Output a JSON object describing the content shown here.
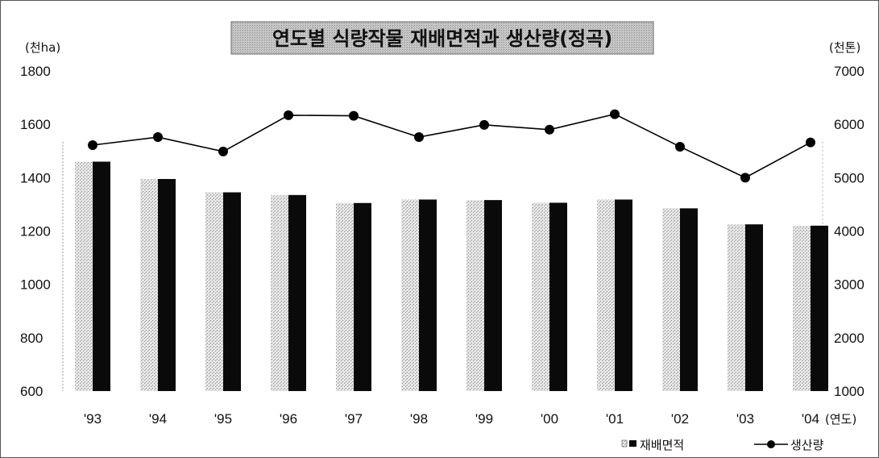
{
  "chart_data": {
    "type": "bar+line",
    "title": "연도별 식량작물 재배면적과 생산량(정곡)",
    "categories": [
      "'93",
      "'94",
      "'95",
      "'96",
      "'97",
      "'98",
      "'99",
      "'00",
      "'01",
      "'02",
      "'03",
      "'04"
    ],
    "x_unit": "(연도)",
    "y_left": {
      "unit": "(천ha)",
      "ylim": [
        600,
        1800
      ],
      "ticks": [
        600,
        800,
        1000,
        1200,
        1400,
        1600,
        1800
      ]
    },
    "y_right": {
      "unit": "(천톤)",
      "ylim": [
        1000,
        7000
      ],
      "ticks": [
        1000,
        2000,
        3000,
        4000,
        5000,
        6000,
        7000
      ]
    },
    "series": [
      {
        "name": "재배면적",
        "type": "bar",
        "axis": "left",
        "values": [
          1460,
          1395,
          1345,
          1335,
          1305,
          1318,
          1316,
          1306,
          1318,
          1285,
          1225,
          1220
        ]
      },
      {
        "name": "생산량",
        "type": "line",
        "axis": "right",
        "values": [
          5610,
          5760,
          5490,
          6170,
          6160,
          5760,
          5990,
          5900,
          6190,
          5580,
          5000,
          5660
        ]
      }
    ],
    "legend": "bottom-right",
    "colors": {
      "bar_dark": "#0a0a0a",
      "bar_light": "#d9d9d9",
      "line": "#000000",
      "title_bg": "#c8c8c8"
    }
  }
}
